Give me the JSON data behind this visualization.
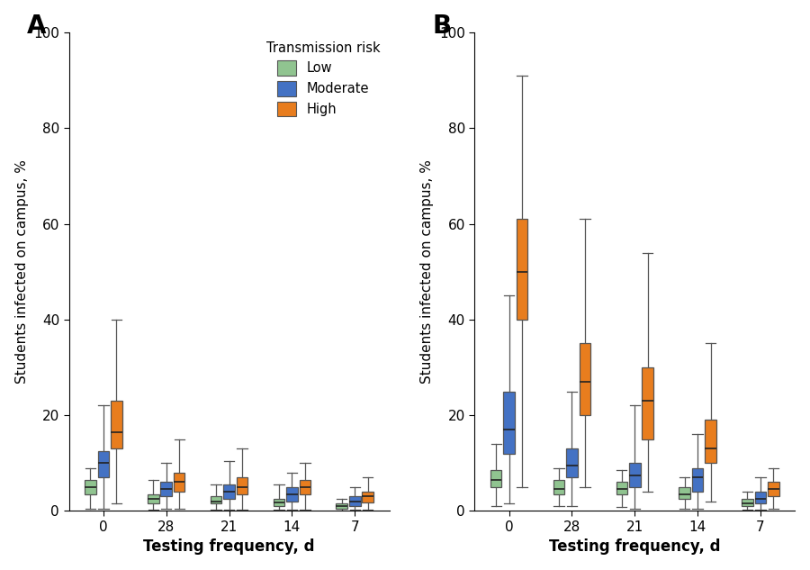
{
  "panel_A": {
    "low": {
      "whislo": [
        0.5,
        0.3,
        0.2,
        0.2,
        0.1
      ],
      "q1": [
        3.5,
        1.5,
        1.5,
        1.0,
        0.5
      ],
      "med": [
        5.0,
        2.5,
        2.0,
        1.8,
        1.0
      ],
      "q3": [
        6.5,
        3.5,
        3.0,
        2.5,
        1.5
      ],
      "whishi": [
        9.0,
        6.5,
        5.5,
        5.5,
        2.5
      ]
    },
    "moderate": {
      "whislo": [
        0.5,
        0.5,
        0.3,
        0.3,
        0.2
      ],
      "q1": [
        7.0,
        3.0,
        2.5,
        2.0,
        1.0
      ],
      "med": [
        10.0,
        4.5,
        4.0,
        3.5,
        2.0
      ],
      "q3": [
        12.5,
        6.0,
        5.5,
        5.0,
        3.0
      ],
      "whishi": [
        22.0,
        10.0,
        10.5,
        8.0,
        5.0
      ]
    },
    "high": {
      "whislo": [
        1.5,
        0.5,
        0.3,
        0.3,
        0.3
      ],
      "q1": [
        13.0,
        4.0,
        3.5,
        3.5,
        1.8
      ],
      "med": [
        16.5,
        6.0,
        5.0,
        5.0,
        3.0
      ],
      "q3": [
        23.0,
        8.0,
        7.0,
        6.5,
        4.0
      ],
      "whishi": [
        40.0,
        15.0,
        13.0,
        10.0,
        7.0
      ]
    }
  },
  "panel_B": {
    "low": {
      "whislo": [
        1.0,
        1.0,
        0.8,
        0.5,
        0.2
      ],
      "q1": [
        5.0,
        3.5,
        3.5,
        2.5,
        1.0
      ],
      "med": [
        6.5,
        4.5,
        4.5,
        3.5,
        1.5
      ],
      "q3": [
        8.5,
        6.5,
        6.0,
        5.0,
        2.5
      ],
      "whishi": [
        14.0,
        9.0,
        8.5,
        7.0,
        4.0
      ]
    },
    "moderate": {
      "whislo": [
        1.5,
        1.0,
        0.5,
        0.5,
        0.3
      ],
      "q1": [
        12.0,
        7.0,
        5.0,
        4.0,
        1.5
      ],
      "med": [
        17.0,
        9.5,
        7.5,
        7.0,
        2.5
      ],
      "q3": [
        25.0,
        13.0,
        10.0,
        9.0,
        4.0
      ],
      "whishi": [
        45.0,
        25.0,
        22.0,
        16.0,
        7.0
      ]
    },
    "high": {
      "whislo": [
        5.0,
        5.0,
        4.0,
        2.0,
        0.5
      ],
      "q1": [
        40.0,
        20.0,
        15.0,
        10.0,
        3.0
      ],
      "med": [
        50.0,
        27.0,
        23.0,
        13.0,
        4.5
      ],
      "q3": [
        61.0,
        35.0,
        30.0,
        19.0,
        6.0
      ],
      "whishi": [
        91.0,
        61.0,
        54.0,
        35.0,
        9.0
      ]
    }
  },
  "colors": {
    "low": "#90c490",
    "moderate": "#4472c4",
    "high": "#e87d1e"
  },
  "edge_color": "#555555",
  "median_color": "#222222",
  "whisker_color": "#555555",
  "ylabel": "Students infected on campus, %",
  "xlabel": "Testing frequency, d",
  "ylim": [
    0,
    100
  ],
  "yticks": [
    0,
    20,
    40,
    60,
    80,
    100
  ],
  "group_labels": [
    "0",
    "28",
    "21",
    "14",
    "7"
  ],
  "legend_title": "Transmission risk",
  "legend_labels": [
    "Low",
    "Moderate",
    "High"
  ],
  "risk_keys": [
    "low",
    "moderate",
    "high"
  ]
}
